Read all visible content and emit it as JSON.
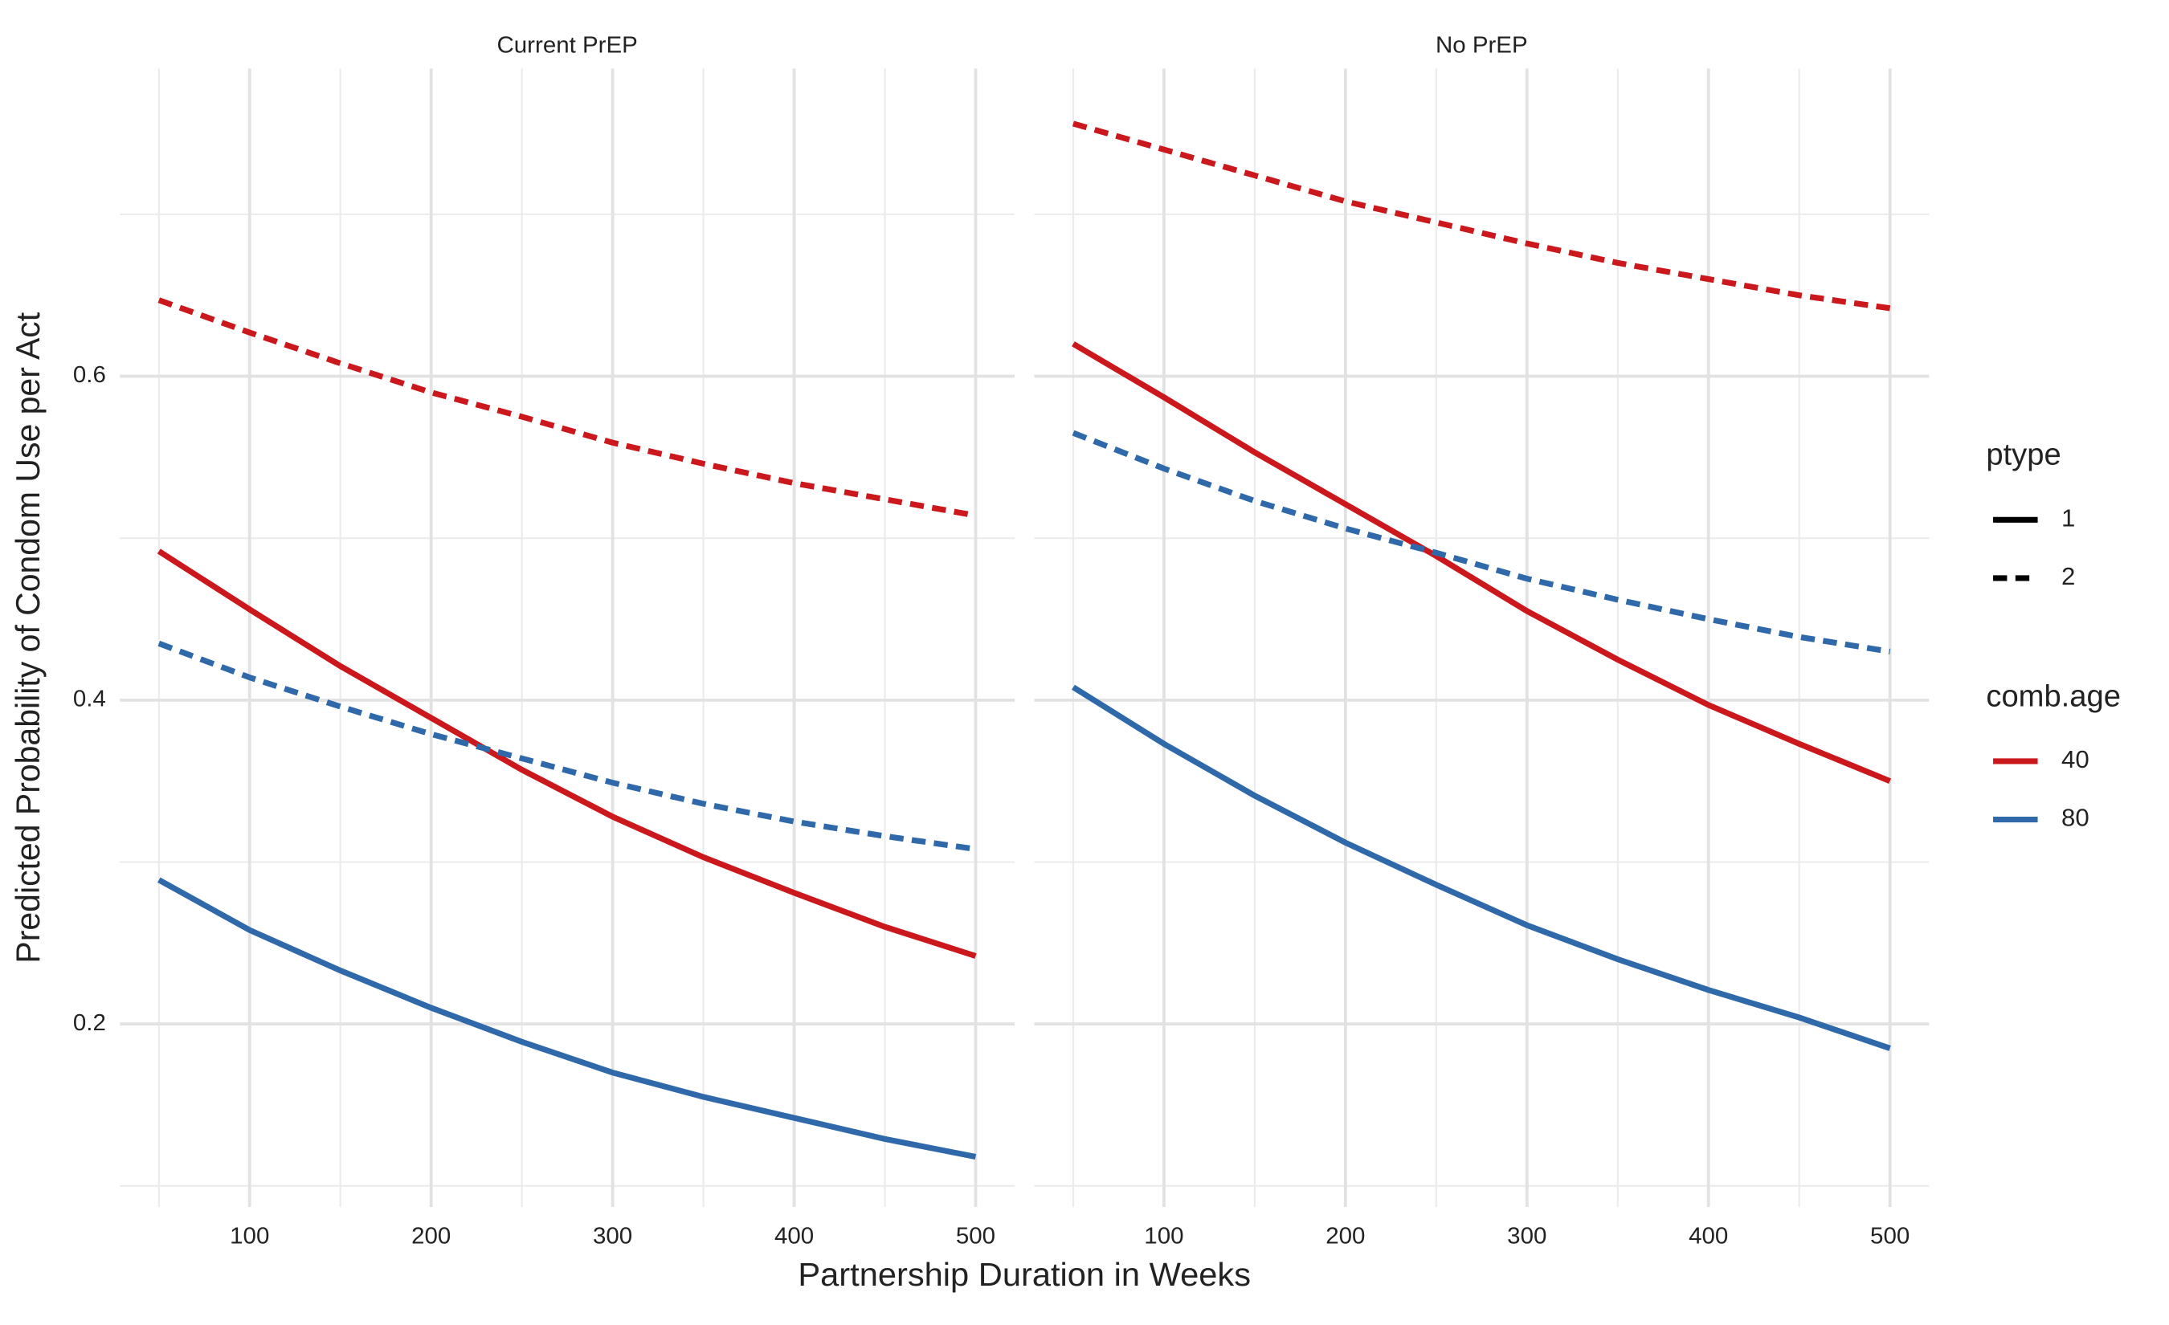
{
  "chart_data": {
    "type": "line",
    "x_label": "Partnership Duration in Weeks",
    "y_label": "Predicted Probability of Condom Use per Act",
    "x": [
      50,
      100,
      150,
      200,
      250,
      300,
      350,
      400,
      450,
      500
    ],
    "xlim": [
      28.5,
      521.5
    ],
    "xticks": [
      100,
      200,
      300,
      400,
      500
    ],
    "minor_xticks": [
      50,
      150,
      250,
      350,
      450
    ],
    "ylim": [
      0.087,
      0.79
    ],
    "yticks": [
      0.2,
      0.4,
      0.6
    ],
    "minor_yticks": [
      0.1,
      0.3,
      0.5,
      0.7
    ],
    "grid": true,
    "legend_position": "right",
    "legend": [
      {
        "title": "ptype",
        "entries": [
          {
            "label": "1",
            "dashed": false
          },
          {
            "label": "2",
            "dashed": true
          }
        ]
      },
      {
        "title": "comb.age",
        "entries": [
          {
            "label": "40",
            "color": "#cb181d"
          },
          {
            "label": "80",
            "color": "#2f69a9"
          }
        ]
      }
    ],
    "facets": [
      {
        "title": "Current PrEP",
        "series": [
          {
            "color": "#cb181d",
            "dashed": true,
            "values": [
              0.647,
              0.627,
              0.608,
              0.59,
              0.575,
              0.559,
              0.546,
              0.534,
              0.524,
              0.514
            ]
          },
          {
            "color": "#cb181d",
            "dashed": false,
            "values": [
              0.492,
              0.456,
              0.421,
              0.389,
              0.357,
              0.328,
              0.303,
              0.281,
              0.26,
              0.242
            ]
          },
          {
            "color": "#2f69a9",
            "dashed": true,
            "values": [
              0.435,
              0.414,
              0.396,
              0.379,
              0.364,
              0.349,
              0.336,
              0.325,
              0.316,
              0.308
            ]
          },
          {
            "color": "#2f69a9",
            "dashed": false,
            "values": [
              0.289,
              0.258,
              0.233,
              0.21,
              0.189,
              0.17,
              0.155,
              0.142,
              0.129,
              0.118
            ]
          }
        ]
      },
      {
        "title": "No PrEP",
        "series": [
          {
            "color": "#cb181d",
            "dashed": true,
            "values": [
              0.756,
              0.74,
              0.724,
              0.708,
              0.695,
              0.682,
              0.67,
              0.66,
              0.65,
              0.642
            ]
          },
          {
            "color": "#cb181d",
            "dashed": false,
            "values": [
              0.62,
              0.587,
              0.553,
              0.521,
              0.489,
              0.455,
              0.425,
              0.397,
              0.373,
              0.35
            ]
          },
          {
            "color": "#2f69a9",
            "dashed": true,
            "values": [
              0.565,
              0.543,
              0.523,
              0.506,
              0.491,
              0.475,
              0.462,
              0.45,
              0.439,
              0.43
            ]
          },
          {
            "color": "#2f69a9",
            "dashed": false,
            "values": [
              0.408,
              0.373,
              0.341,
              0.312,
              0.286,
              0.261,
              0.24,
              0.221,
              0.204,
              0.185
            ]
          }
        ]
      }
    ]
  }
}
